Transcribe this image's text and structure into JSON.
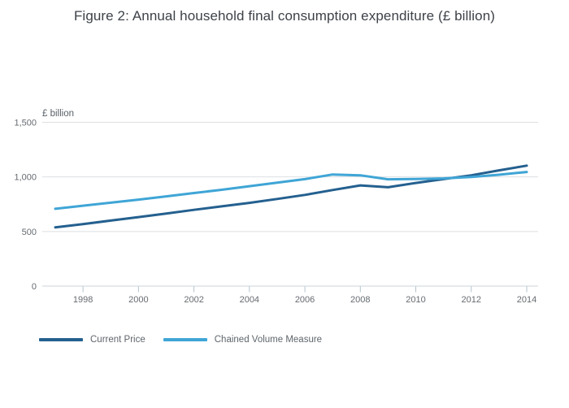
{
  "title": "Figure 2: Annual household final consumption expenditure (£ billion)",
  "chart_data": {
    "type": "line",
    "title": "Figure 2: Annual household final consumption expenditure (£ billion)",
    "unit_label": "£ billion",
    "xlabel": "",
    "ylabel": "£ billion",
    "x": [
      1997,
      1998,
      1999,
      2000,
      2001,
      2002,
      2003,
      2004,
      2005,
      2006,
      2007,
      2008,
      2009,
      2010,
      2011,
      2012,
      2013,
      2014
    ],
    "x_tick_labels": [
      "1998",
      "2000",
      "2002",
      "2004",
      "2006",
      "2008",
      "2010",
      "2012",
      "2014"
    ],
    "y_ticks": [
      0,
      500,
      1000,
      1500
    ],
    "y_tick_labels": [
      "0",
      "500",
      "1,000",
      "1,500"
    ],
    "ylim": [
      0,
      1500
    ],
    "grid": true,
    "legend_position": "bottom-left",
    "series": [
      {
        "name": "Current Price",
        "color": "#24608f",
        "values": [
          538,
          568,
          600,
          632,
          665,
          698,
          730,
          762,
          798,
          835,
          880,
          922,
          905,
          945,
          980,
          1015,
          1060,
          1103
        ]
      },
      {
        "name": "Chained Volume Measure",
        "color": "#3fa5d6",
        "values": [
          708,
          736,
          764,
          792,
          822,
          852,
          882,
          915,
          948,
          980,
          1022,
          1015,
          978,
          981,
          986,
          1000,
          1020,
          1045
        ]
      }
    ],
    "style": {
      "grid_color": "#dcdfe2",
      "axis_color": "#ccd4da",
      "tick_color": "#b3c3ce",
      "tick_label_color": "#666b70",
      "line_width": 3
    }
  }
}
